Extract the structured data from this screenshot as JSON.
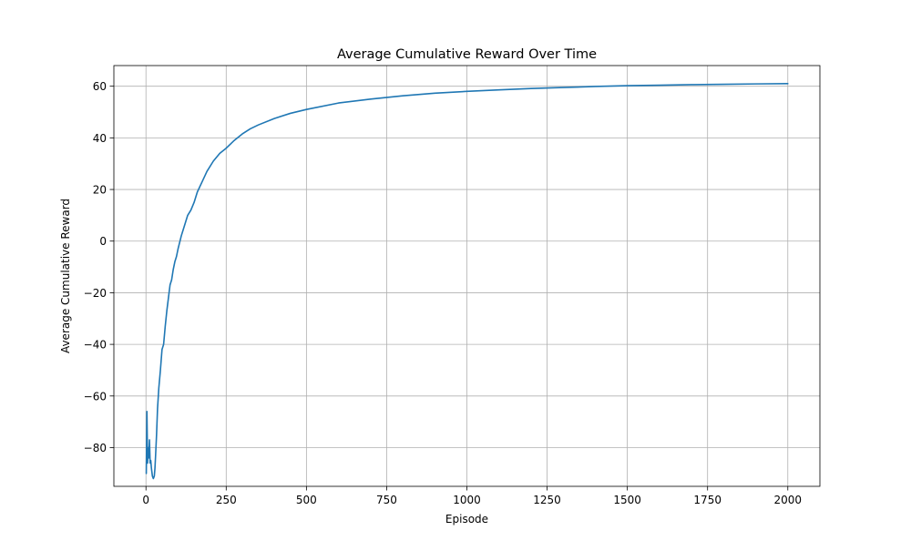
{
  "chart_data": {
    "type": "line",
    "title": "Average Cumulative Reward Over Time",
    "xlabel": "Episode",
    "ylabel": "Average Cumulative Reward",
    "xlim": [
      -100,
      2100
    ],
    "ylim": [
      -95,
      68
    ],
    "grid": true,
    "legend": "none",
    "line_color": "#1f77b4",
    "xticks": [
      0,
      250,
      500,
      750,
      1000,
      1250,
      1500,
      1750,
      2000
    ],
    "xtick_labels": [
      "0",
      "250",
      "500",
      "750",
      "1000",
      "1250",
      "1500",
      "1750",
      "2000"
    ],
    "yticks": [
      -80,
      -60,
      -40,
      -20,
      0,
      20,
      40,
      60
    ],
    "ytick_labels": [
      "−80",
      "−60",
      "−40",
      "−20",
      "0",
      "20",
      "40",
      "60"
    ],
    "series": [
      {
        "name": "Average Cumulative Reward",
        "x": [
          1,
          3,
          5,
          7,
          9,
          11,
          13,
          15,
          17,
          20,
          23,
          26,
          28,
          30,
          33,
          36,
          40,
          45,
          50,
          55,
          60,
          65,
          70,
          75,
          80,
          85,
          90,
          95,
          100,
          110,
          120,
          130,
          140,
          150,
          160,
          175,
          190,
          210,
          230,
          250,
          275,
          300,
          325,
          350,
          400,
          450,
          500,
          600,
          700,
          800,
          900,
          1000,
          1100,
          1200,
          1300,
          1400,
          1500,
          1600,
          1700,
          1800,
          1900,
          2000
        ],
        "values": [
          -90,
          -66,
          -86,
          -80,
          -84,
          -77,
          -86,
          -85,
          -88,
          -91,
          -92,
          -91,
          -88,
          -83,
          -75,
          -65,
          -57,
          -50,
          -42,
          -40,
          -33,
          -27,
          -22,
          -17,
          -15,
          -11,
          -8,
          -6,
          -3,
          2,
          6,
          10,
          12,
          15,
          19,
          23,
          27,
          31,
          34,
          36,
          39,
          41.5,
          43.5,
          45,
          47.5,
          49.5,
          51,
          53.5,
          55,
          56.3,
          57.3,
          58,
          58.6,
          59.1,
          59.5,
          59.9,
          60.2,
          60.4,
          60.6,
          60.75,
          60.9,
          61
        ]
      }
    ]
  }
}
